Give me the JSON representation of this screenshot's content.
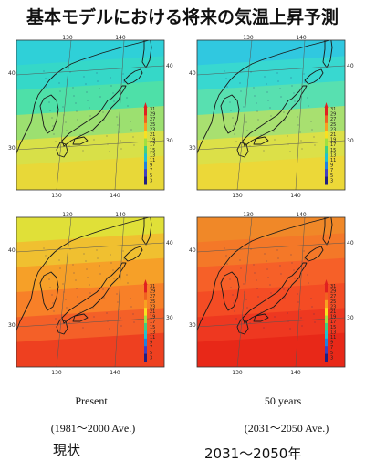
{
  "title": "基本モデルにおける将来の気温上昇予測",
  "panels": [
    {
      "id": "present-winter",
      "bands": [
        "#2fd0d8",
        "#35d8c8",
        "#4ee0a8",
        "#9ce070",
        "#d8e048",
        "#e8d838"
      ]
    },
    {
      "id": "future-winter",
      "bands": [
        "#30c8e0",
        "#38d8d0",
        "#58e0b0",
        "#a8e070",
        "#dce048",
        "#ecd838"
      ]
    },
    {
      "id": "present-summer",
      "bands": [
        "#e0e038",
        "#f0c030",
        "#f6a028",
        "#f88028",
        "#f46028",
        "#ee4020"
      ]
    },
    {
      "id": "future-summer",
      "bands": [
        "#f08828",
        "#f47828",
        "#f66028",
        "#f44c24",
        "#ee3820",
        "#e82818"
      ]
    }
  ],
  "ticks": {
    "top_left": [
      "130",
      "140"
    ],
    "top_right": [
      "130",
      "140"
    ],
    "bottom_left": [
      "130",
      "140"
    ],
    "bottom_right": [
      "130",
      "140"
    ],
    "lat_top": "40",
    "lat_bottom": "30"
  },
  "colorbar_labels": [
    "31",
    "29",
    "27",
    "25",
    "23",
    "21",
    "19",
    "17",
    "15",
    "13",
    "11",
    "9",
    "7",
    "5",
    "3"
  ],
  "captions": {
    "present_label": "Present",
    "present_range": "(1981～2000 Ave.)",
    "future_label": "50 years",
    "future_range": "(2031～2050 Ave.)",
    "present_jp": "現状",
    "future_jp": "2031～2050年"
  },
  "colors": {
    "land_outline": "#1a1a1a",
    "grid": "#555555"
  }
}
